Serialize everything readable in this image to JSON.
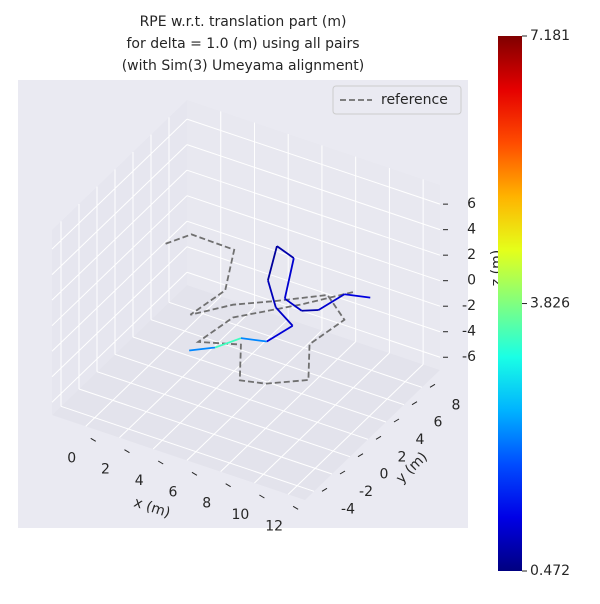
{
  "chart_data": {
    "type": "line3d",
    "title": [
      "RPE w.r.t. translation part (m)",
      "for delta = 1.0 (m) using all pairs",
      "(with Sim(3) Umeyama alignment)"
    ],
    "xlabel": "x (m)",
    "ylabel": "y (m)",
    "zlabel": "z (m)",
    "xlim": [
      -2,
      13
    ],
    "ylim": [
      -5,
      10
    ],
    "zlim": [
      -7,
      7.5
    ],
    "xticks": [
      0,
      2,
      4,
      6,
      8,
      10,
      12
    ],
    "yticks": [
      -4,
      -2,
      0,
      2,
      4,
      6,
      8
    ],
    "zticks": [
      -6,
      -4,
      -2,
      0,
      2,
      4,
      6
    ],
    "grid": true,
    "legend": "upper right",
    "colormap": "jet",
    "colorbar": {
      "clim": [
        0.472,
        7.181
      ],
      "ticks": [
        0.472,
        3.826,
        7.181
      ]
    },
    "series": [
      {
        "name": "reference",
        "color": "#707070",
        "style": "dashed",
        "x": [
          1,
          2,
          4,
          4,
          3,
          5,
          7,
          9,
          10,
          9,
          10,
          8,
          7,
          6,
          4,
          5,
          8,
          10
        ],
        "y": [
          2,
          3,
          4,
          3,
          1,
          2,
          3,
          5,
          5,
          3,
          1,
          0,
          -1,
          1,
          0,
          2,
          4,
          6
        ],
        "z": [
          3,
          3.5,
          2.5,
          0,
          -1,
          0,
          0.5,
          0.5,
          -1,
          -2,
          -3,
          -3.5,
          -3,
          -2,
          -2,
          -1,
          0,
          0.5
        ]
      },
      {
        "x": [
          4,
          5,
          6,
          7,
          8,
          7,
          6,
          6,
          7,
          7,
          8,
          9,
          10,
          11
        ],
        "y": [
          -1,
          0,
          1,
          2,
          3,
          3,
          4,
          5,
          5,
          4,
          4,
          4,
          5,
          6
        ],
        "z": [
          -2,
          -2,
          -1.5,
          -2,
          -1,
          0,
          1,
          3,
          2.5,
          0,
          -0.5,
          0,
          1,
          0.5
        ],
        "error": [
          0.8,
          3.6,
          3.2,
          1.2,
          0.9,
          1.0,
          0.7,
          0.6,
          0.9,
          1.1,
          0.8,
          0.7,
          1.3,
          0.9
        ]
      }
    ]
  }
}
